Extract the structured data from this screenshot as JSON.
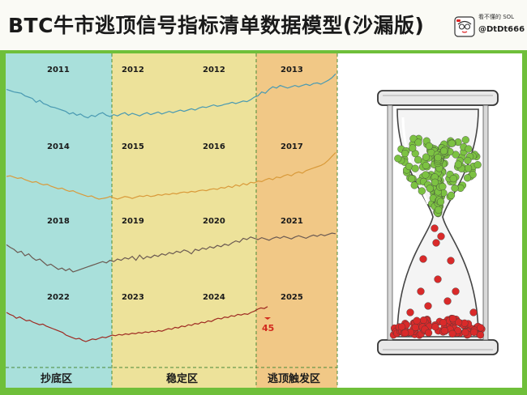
{
  "header": {
    "title": "BTC牛市逃顶信号指标清单数据模型(沙漏版)",
    "author_subtitle": "看不懂的 SOL",
    "author_handle": "@DtDt666",
    "avatar_icon": "cartoon-avatar-icon"
  },
  "colors": {
    "frame": "#6fbf3a",
    "zone_bottom": "#a9e0db",
    "zone_stable": "#ede29a",
    "zone_top": "#f1c886",
    "row_colors": [
      "#4a9ab2",
      "#d99a3a",
      "#6b5a52",
      "#9e2a22"
    ],
    "sand_green": "#7cc242",
    "sand_red": "#d92a2a"
  },
  "chart_data": {
    "type": "line",
    "title": "BTC牛市逃顶信号指标清单数据模型(沙漏版)",
    "xlabel": "",
    "ylabel": "",
    "grid": false,
    "legend": "none",
    "zones": [
      {
        "name": "抄底区",
        "years": [
          "2011",
          "2014",
          "2018",
          "2022"
        ]
      },
      {
        "name": "稳定区",
        "years": [
          "2012",
          "2015",
          "2019",
          "2023",
          "2016",
          "2020",
          "2024"
        ]
      },
      {
        "name": "逃顶触发区",
        "years": [
          "2013",
          "2017",
          "2021",
          "2025"
        ]
      }
    ],
    "rows": [
      {
        "years": [
          "2011",
          "2012",
          "2012",
          "2013"
        ],
        "values": [
          0.72,
          0.7,
          0.68,
          0.67,
          0.66,
          0.62,
          0.6,
          0.58,
          0.52,
          0.55,
          0.5,
          0.48,
          0.45,
          0.44,
          0.42,
          0.4,
          0.38,
          0.34,
          0.36,
          0.32,
          0.34,
          0.3,
          0.28,
          0.32,
          0.3,
          0.34,
          0.36,
          0.32,
          0.3,
          0.33,
          0.31,
          0.34,
          0.36,
          0.32,
          0.35,
          0.33,
          0.31,
          0.34,
          0.36,
          0.33,
          0.35,
          0.37,
          0.34,
          0.36,
          0.38,
          0.36,
          0.38,
          0.4,
          0.38,
          0.4,
          0.42,
          0.4,
          0.43,
          0.45,
          0.44,
          0.46,
          0.48,
          0.46,
          0.47,
          0.49,
          0.5,
          0.52,
          0.5,
          0.52,
          0.54,
          0.53,
          0.56,
          0.6,
          0.62,
          0.68,
          0.66,
          0.72,
          0.76,
          0.74,
          0.78,
          0.76,
          0.74,
          0.76,
          0.78,
          0.76,
          0.78,
          0.8,
          0.78,
          0.81,
          0.82,
          0.8,
          0.83,
          0.86,
          0.9,
          0.96
        ]
      },
      {
        "years": [
          "2014",
          "2015",
          "2016",
          "2017"
        ],
        "values": [
          0.55,
          0.56,
          0.54,
          0.52,
          0.53,
          0.5,
          0.48,
          0.46,
          0.47,
          0.44,
          0.42,
          0.43,
          0.4,
          0.38,
          0.36,
          0.37,
          0.34,
          0.32,
          0.33,
          0.3,
          0.28,
          0.26,
          0.24,
          0.25,
          0.22,
          0.2,
          0.21,
          0.22,
          0.24,
          0.22,
          0.2,
          0.22,
          0.24,
          0.23,
          0.21,
          0.23,
          0.25,
          0.24,
          0.26,
          0.24,
          0.25,
          0.27,
          0.26,
          0.28,
          0.27,
          0.29,
          0.28,
          0.3,
          0.31,
          0.3,
          0.32,
          0.31,
          0.33,
          0.34,
          0.33,
          0.35,
          0.36,
          0.35,
          0.38,
          0.37,
          0.4,
          0.38,
          0.42,
          0.4,
          0.44,
          0.42,
          0.46,
          0.45,
          0.48,
          0.47,
          0.5,
          0.52,
          0.5,
          0.54,
          0.53,
          0.56,
          0.58,
          0.56,
          0.6,
          0.62,
          0.6,
          0.64,
          0.66,
          0.68,
          0.7,
          0.72,
          0.75,
          0.8,
          0.86,
          0.92
        ]
      },
      {
        "years": [
          "2018",
          "2019",
          "2020",
          "2021"
        ],
        "values": [
          0.62,
          0.58,
          0.55,
          0.5,
          0.52,
          0.45,
          0.48,
          0.42,
          0.38,
          0.4,
          0.35,
          0.3,
          0.32,
          0.28,
          0.24,
          0.26,
          0.22,
          0.25,
          0.2,
          0.22,
          0.24,
          0.26,
          0.28,
          0.3,
          0.32,
          0.34,
          0.36,
          0.34,
          0.38,
          0.36,
          0.4,
          0.38,
          0.42,
          0.4,
          0.44,
          0.38,
          0.46,
          0.4,
          0.44,
          0.42,
          0.46,
          0.44,
          0.48,
          0.46,
          0.5,
          0.48,
          0.52,
          0.5,
          0.54,
          0.52,
          0.48,
          0.55,
          0.53,
          0.57,
          0.55,
          0.59,
          0.57,
          0.61,
          0.59,
          0.63,
          0.61,
          0.65,
          0.68,
          0.66,
          0.72,
          0.7,
          0.74,
          0.72,
          0.7,
          0.73,
          0.71,
          0.69,
          0.72,
          0.74,
          0.72,
          0.75,
          0.73,
          0.71,
          0.74,
          0.76,
          0.74,
          0.72,
          0.75,
          0.77,
          0.75,
          0.78,
          0.76,
          0.78,
          0.8,
          0.79
        ]
      },
      {
        "years": [
          "2022",
          "2023",
          "2024",
          "2025"
        ],
        "values": [
          0.65,
          0.62,
          0.6,
          0.56,
          0.58,
          0.55,
          0.52,
          0.53,
          0.5,
          0.48,
          0.46,
          0.47,
          0.44,
          0.42,
          0.4,
          0.38,
          0.36,
          0.34,
          0.3,
          0.28,
          0.26,
          0.24,
          0.25,
          0.22,
          0.2,
          0.22,
          0.24,
          0.23,
          0.25,
          0.27,
          0.26,
          0.28,
          0.3,
          0.29,
          0.31,
          0.3,
          0.32,
          0.31,
          0.33,
          0.32,
          0.34,
          0.33,
          0.35,
          0.34,
          0.36,
          0.35,
          0.37,
          0.36,
          0.38,
          0.4,
          0.39,
          0.42,
          0.41,
          0.44,
          0.43,
          0.46,
          0.45,
          0.48,
          0.47,
          0.5,
          0.49,
          0.52,
          0.51,
          0.54,
          0.56,
          0.55,
          0.58,
          0.57,
          0.6,
          0.59,
          0.62,
          0.61,
          0.63,
          0.62,
          0.65,
          0.67,
          0.7,
          0.72,
          0.71,
          0.74
        ]
      }
    ],
    "annotations": [
      {
        "text": "45",
        "row": 3,
        "note": "progress marker"
      }
    ]
  }
}
